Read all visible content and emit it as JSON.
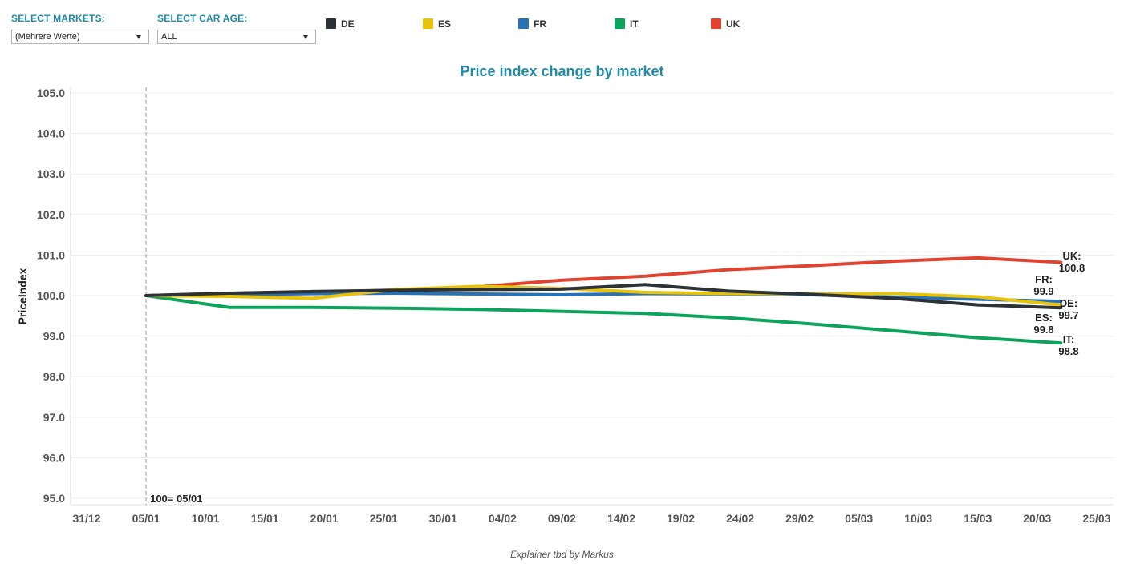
{
  "filters": {
    "markets": {
      "label": "SELECT MARKETS:",
      "value": "(Mehrere Werte)"
    },
    "car_age": {
      "label": "SELECT CAR AGE:",
      "value": "ALL"
    }
  },
  "legend": [
    {
      "name": "DE",
      "color": "#2c3236"
    },
    {
      "name": "ES",
      "color": "#e8c30c"
    },
    {
      "name": "FR",
      "color": "#2771b4"
    },
    {
      "name": "IT",
      "color": "#0ca35c"
    },
    {
      "name": "UK",
      "color": "#e0432f"
    }
  ],
  "footer": "Explainer tbd by Markus",
  "chart_data": {
    "type": "line",
    "title": "Price index change by market",
    "xlabel": "",
    "ylabel": "PriceIndex",
    "ylim": [
      95.0,
      105.0
    ],
    "yticks": [
      "95.0",
      "96.0",
      "97.0",
      "98.0",
      "99.0",
      "100.0",
      "101.0",
      "102.0",
      "103.0",
      "104.0",
      "105.0"
    ],
    "xticks": [
      "31/12",
      "05/01",
      "10/01",
      "15/01",
      "20/01",
      "25/01",
      "30/01",
      "04/02",
      "09/02",
      "14/02",
      "19/02",
      "24/02",
      "29/02",
      "05/03",
      "10/03",
      "15/03",
      "20/03",
      "25/03"
    ],
    "x": [
      "05/01",
      "12/01",
      "19/01",
      "26/01",
      "02/02",
      "09/02",
      "16/02",
      "23/02",
      "01/03",
      "08/03",
      "15/03",
      "22/03"
    ],
    "reference_line": {
      "x": "05/01",
      "label": "100= 05/01"
    },
    "grid": true,
    "series": [
      {
        "name": "DE",
        "color": "#2c3236",
        "values": [
          100.0,
          100.06,
          100.1,
          100.13,
          100.15,
          100.16,
          100.27,
          100.11,
          100.03,
          99.93,
          99.77,
          99.7
        ],
        "end_label": [
          "DE:",
          "99.7"
        ]
      },
      {
        "name": "ES",
        "color": "#e8c30c",
        "values": [
          100.0,
          99.98,
          99.93,
          100.15,
          100.23,
          100.18,
          100.08,
          100.05,
          100.04,
          100.05,
          99.97,
          99.77
        ],
        "end_label": [
          "ES:",
          "99.8"
        ]
      },
      {
        "name": "FR",
        "color": "#2771b4",
        "values": [
          100.0,
          100.02,
          100.05,
          100.06,
          100.04,
          100.02,
          100.05,
          100.04,
          100.02,
          99.96,
          99.91,
          99.86
        ],
        "end_label": [
          "FR:",
          "99.9"
        ]
      },
      {
        "name": "IT",
        "color": "#0ca35c",
        "values": [
          100.0,
          99.71,
          99.71,
          99.69,
          99.66,
          99.61,
          99.56,
          99.45,
          99.3,
          99.13,
          98.96,
          98.83
        ],
        "end_label": [
          "IT:",
          "98.8"
        ]
      },
      {
        "name": "UK",
        "color": "#e0432f",
        "values": [
          100.0,
          100.06,
          100.07,
          100.14,
          100.22,
          100.38,
          100.48,
          100.64,
          100.74,
          100.85,
          100.93,
          100.82
        ],
        "end_label": [
          "UK:",
          "100.8"
        ]
      }
    ]
  }
}
